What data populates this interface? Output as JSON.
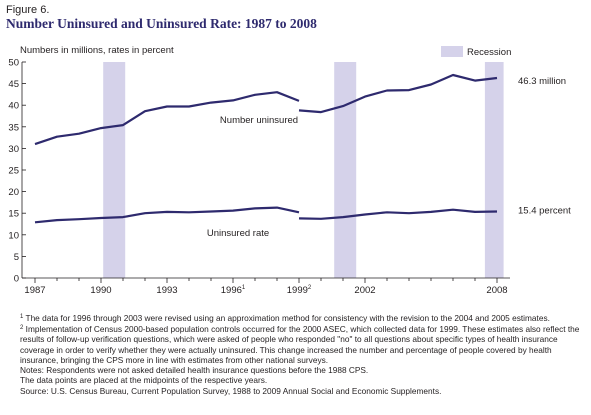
{
  "figure_label": "Figure 6.",
  "title": "Number Uninsured and Uninsured Rate: 1987 to 2008",
  "colors": {
    "line": "#2e2a6e",
    "recession": "#d5d2ea",
    "axis": "#231f20"
  },
  "chart_data": {
    "type": "line",
    "title": "Number Uninsured and Uninsured Rate: 1987 to 2008",
    "ylabel": "Numbers in millions, rates in percent",
    "xlabel": "",
    "ylim": [
      0,
      50
    ],
    "y_ticks": [
      0,
      5,
      10,
      15,
      20,
      25,
      30,
      35,
      40,
      45,
      50
    ],
    "x_range": [
      1987,
      2008
    ],
    "x_ticks": [
      {
        "year": 1987,
        "label": "1987"
      },
      {
        "year": 1990,
        "label": "1990"
      },
      {
        "year": 1993,
        "label": "1993"
      },
      {
        "year": 1996,
        "label": "1996",
        "sup": "1"
      },
      {
        "year": 1999,
        "label": "1999",
        "sup": "2"
      },
      {
        "year": 2002,
        "label": "2002"
      },
      {
        "year": 2008,
        "label": "2008"
      }
    ],
    "minor_ticks": [
      1988,
      1989,
      1991,
      1992,
      1994,
      1995,
      1997,
      1998,
      2000,
      2001,
      2003,
      2004,
      2005,
      2006,
      2007
    ],
    "grid": false,
    "legend": {
      "label": "Recession",
      "position": "top-right"
    },
    "recessions": [
      {
        "start": 1990.1,
        "end": 1991.1
      },
      {
        "start": 2000.6,
        "end": 2001.6
      },
      {
        "start": 2007.45,
        "end": 2008.3
      }
    ],
    "series": [
      {
        "name": "Number uninsured",
        "segments": [
          [
            [
              1987,
              31.0
            ],
            [
              1988,
              32.7
            ],
            [
              1989,
              33.4
            ],
            [
              1990,
              34.7
            ],
            [
              1991,
              35.4
            ],
            [
              1992,
              38.6
            ],
            [
              1993,
              39.7
            ],
            [
              1994,
              39.7
            ],
            [
              1995,
              40.6
            ],
            [
              1996,
              41.1
            ],
            [
              1997,
              42.4
            ],
            [
              1998,
              43.0
            ],
            [
              1999,
              41.0
            ]
          ],
          [
            [
              1999,
              38.8
            ],
            [
              2000,
              38.4
            ],
            [
              2001,
              39.8
            ],
            [
              2002,
              42.0
            ],
            [
              2003,
              43.4
            ],
            [
              2004,
              43.5
            ],
            [
              2005,
              44.8
            ],
            [
              2006,
              47.0
            ],
            [
              2007,
              45.7
            ],
            [
              2008,
              46.3
            ]
          ]
        ],
        "end_label": "46.3 million"
      },
      {
        "name": "Uninsured rate",
        "segments": [
          [
            [
              1987,
              12.9
            ],
            [
              1988,
              13.4
            ],
            [
              1989,
              13.6
            ],
            [
              1990,
              13.9
            ],
            [
              1991,
              14.1
            ],
            [
              1992,
              15.0
            ],
            [
              1993,
              15.3
            ],
            [
              1994,
              15.2
            ],
            [
              1995,
              15.4
            ],
            [
              1996,
              15.6
            ],
            [
              1997,
              16.1
            ],
            [
              1998,
              16.3
            ],
            [
              1999,
              15.2
            ]
          ],
          [
            [
              1999,
              13.8
            ],
            [
              2000,
              13.7
            ],
            [
              2001,
              14.1
            ],
            [
              2002,
              14.7
            ],
            [
              2003,
              15.2
            ],
            [
              2004,
              15.0
            ],
            [
              2005,
              15.3
            ],
            [
              2006,
              15.8
            ],
            [
              2007,
              15.3
            ],
            [
              2008,
              15.4
            ]
          ]
        ],
        "end_label": "15.4 percent"
      }
    ]
  },
  "notes": {
    "n1_mark": "1",
    "n1": "The data for 1996 through 2003 were revised using an approximation method for consistency with the revision to the 2004 and 2005 estimates.",
    "n2_mark": "2",
    "n2": "Implementation of Census 2000-based population controls occurred for the 2000 ASEC, which collected data for 1999. These estimates also reflect the results of follow-up verification questions, which were asked of people who responded \"no\" to all questions about specific types of health insurance coverage in order to verify whether they were actually uninsured. This change increased the number and percentage of people covered by health insurance, bringing the CPS more in line with estimates from other national surveys.",
    "n3": "Notes: Respondents were not asked detailed health insurance questions before the 1988 CPS.",
    "n4": "The data points are placed at the midpoints of the respective years.",
    "source": "Source: U.S. Census Bureau, Current Population Survey, 1988 to 2009 Annual Social and Economic Supplements."
  }
}
